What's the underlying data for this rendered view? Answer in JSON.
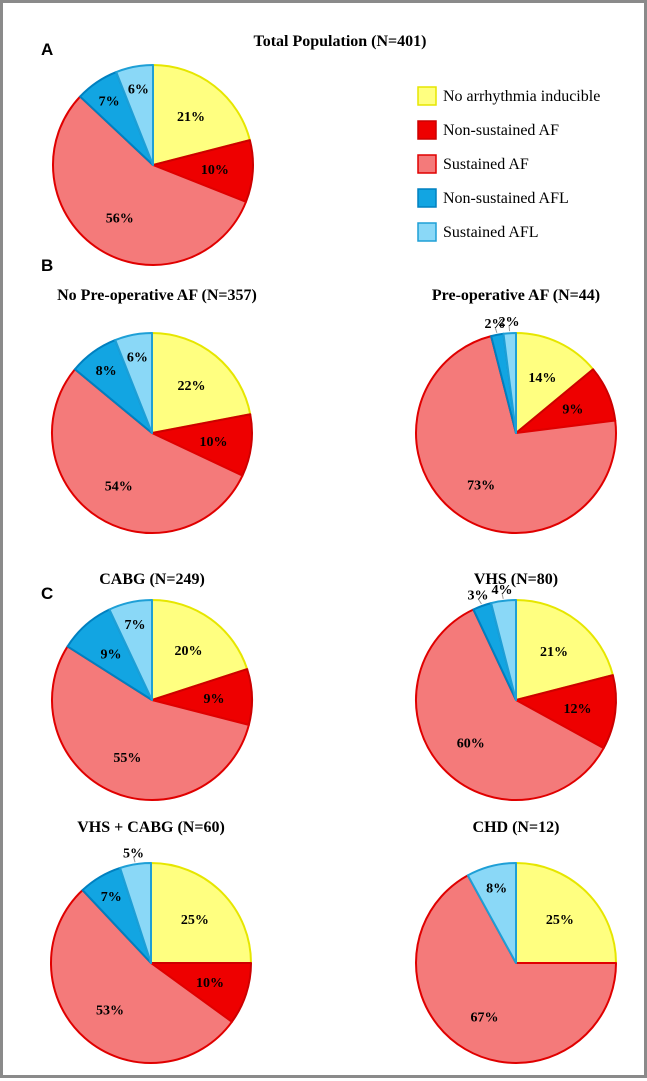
{
  "legend": [
    {
      "label": "No arrhythmia inducible",
      "fill": "#ffff80",
      "stroke": "#e6e600"
    },
    {
      "label": "Non-sustained AF",
      "fill": "#ee0000",
      "stroke": "#cc0000"
    },
    {
      "label": "Sustained AF",
      "fill": "#f47a7a",
      "stroke": "#e00000"
    },
    {
      "label": "Non-sustained AFL",
      "fill": "#12a5e2",
      "stroke": "#0080c0"
    },
    {
      "label": "Sustained AFL",
      "fill": "#8ad8f7",
      "stroke": "#1e9fd6"
    }
  ],
  "panel_letters": [
    "A",
    "B",
    "C"
  ],
  "chart_data": [
    {
      "type": "pie",
      "title": "Total Population (N=401)",
      "labels": [
        "21%",
        "10%",
        "56%",
        "7%",
        "6%"
      ],
      "values": [
        21,
        10,
        56,
        7,
        6
      ]
    },
    {
      "type": "pie",
      "title": "No Pre-operative AF (N=357)",
      "labels": [
        "22%",
        "10%",
        "54%",
        "8%",
        "6%"
      ],
      "values": [
        22,
        10,
        54,
        8,
        6
      ]
    },
    {
      "type": "pie",
      "title": "Pre-operative AF (N=44)",
      "labels": [
        "14%",
        "9%",
        "73%",
        "2%",
        "2%"
      ],
      "values": [
        14,
        9,
        73,
        2,
        2
      ]
    },
    {
      "type": "pie",
      "title": "CABG (N=249)",
      "labels": [
        "20%",
        "9%",
        "55%",
        "9%",
        "7%"
      ],
      "values": [
        20,
        9,
        55,
        9,
        7
      ]
    },
    {
      "type": "pie",
      "title": "VHS (N=80)",
      "labels": [
        "21%",
        "12%",
        "60%",
        "3%",
        "4%"
      ],
      "values": [
        21,
        12,
        60,
        3,
        4
      ]
    },
    {
      "type": "pie",
      "title": "VHS + CABG (N=60)",
      "labels": [
        "25%",
        "10%",
        "53%",
        "7%",
        "5%"
      ],
      "values": [
        25,
        10,
        53,
        7,
        5
      ]
    },
    {
      "type": "pie",
      "title": "CHD (N=12)",
      "labels": [
        "25%",
        "",
        "67%",
        "",
        "8%"
      ],
      "values": [
        25,
        0,
        67,
        0,
        8
      ]
    }
  ]
}
